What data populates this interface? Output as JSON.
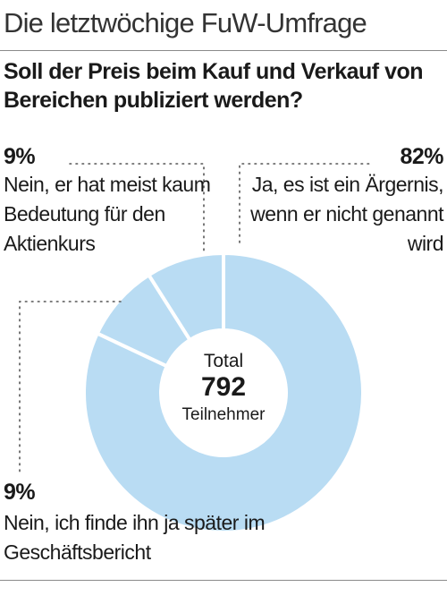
{
  "header": {
    "kicker": "Die letztwöchige FuW-Umfrage",
    "question": "Soll der Preis beim Kauf und Verkauf von Bereichen publiziert werden?"
  },
  "chart_data": {
    "type": "pie",
    "donut": true,
    "slices": [
      {
        "pct_label": "82%",
        "value": 82,
        "label": "Ja, es ist ein Ärgernis, wenn er nicht genannt wird",
        "color": "#b9dcf3"
      },
      {
        "pct_label": "9%",
        "value": 9,
        "label": "Nein, ich finde ihn ja später im Geschäftsbericht",
        "color": "#b9dcf3"
      },
      {
        "pct_label": "9%",
        "value": 9,
        "label": "Nein, er hat meist kaum Bedeutung für den Aktienkurs",
        "color": "#b9dcf3"
      }
    ],
    "center": {
      "top": "Total",
      "value": "792",
      "bottom": "Teilnehmer"
    }
  }
}
